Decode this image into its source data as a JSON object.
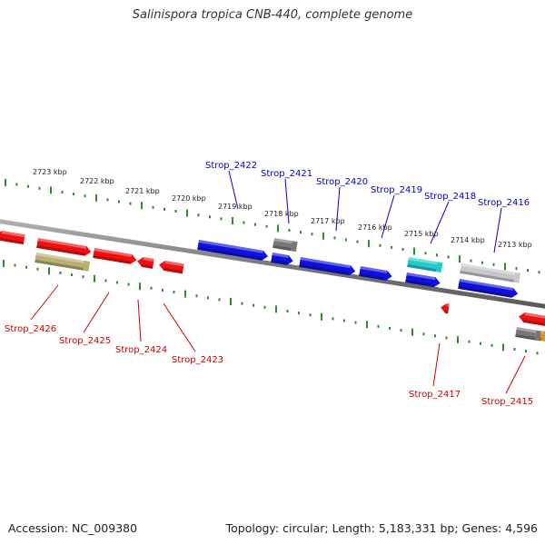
{
  "title": "Salinispora tropica CNB-440, complete genome",
  "footer": {
    "accession": "Accession: NC_009380",
    "summary": "Topology: circular; Length: 5,183,331 bp; Genes: 4,596"
  },
  "colors": {
    "backbone": "#888888",
    "tick": "#2e8b2e",
    "forward_label": "#0000cc",
    "reverse_label": "#cc0000",
    "red": "#ee1111",
    "blue": "#1111dd",
    "gray": "#777777",
    "lightgray": "#c8c8c8",
    "olive": "#b8b070",
    "cyan": "#22cccc",
    "orange": "#f0901a"
  },
  "kbp_labels": [
    "2723 kbp",
    "2722 kbp",
    "2721 kbp",
    "2720 kbp",
    "2719 kbp",
    "2718 kbp",
    "2717 kbp",
    "2716 kbp",
    "2715 kbp",
    "2714 kbp",
    "2713 kbp"
  ],
  "forward_gene_labels": [
    "Strop_2422",
    "Strop_2421",
    "Strop_2420",
    "Strop_2419",
    "Strop_2418",
    "Strop_2416"
  ],
  "reverse_gene_labels": [
    "Strop_2426",
    "Strop_2425",
    "Strop_2424",
    "Strop_2423",
    "Strop_2417",
    "Strop_2415"
  ]
}
